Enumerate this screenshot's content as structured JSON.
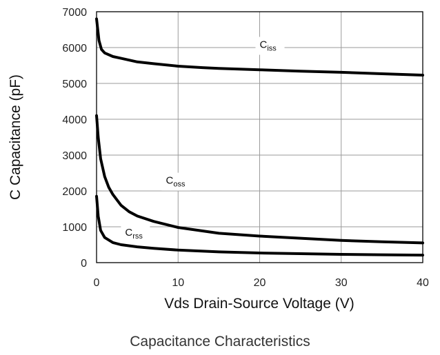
{
  "chart_data": {
    "type": "line",
    "title": "",
    "caption": "Capacitance Characteristics",
    "xlabel": "Vds Drain-Source Voltage (V)",
    "ylabel": "C Capacitance (pF)",
    "xlim": [
      0,
      40
    ],
    "ylim": [
      0,
      7000
    ],
    "xticks": [
      0,
      10,
      20,
      30,
      40
    ],
    "yticks": [
      0,
      1000,
      2000,
      3000,
      4000,
      5000,
      6000,
      7000
    ],
    "grid": true,
    "line_color": "#000000",
    "series": [
      {
        "label_main": "C",
        "label_sub": "iss",
        "label_at": [
          20,
          5990
        ],
        "x": [
          0,
          0.3,
          0.6,
          1,
          2,
          3,
          5,
          7,
          10,
          13,
          15,
          20,
          25,
          30,
          35,
          40
        ],
        "y": [
          6800,
          6200,
          5950,
          5850,
          5750,
          5700,
          5600,
          5550,
          5480,
          5440,
          5420,
          5380,
          5340,
          5310,
          5270,
          5230
        ]
      },
      {
        "label_main": "C",
        "label_sub": "oss",
        "label_at": [
          8.5,
          2200
        ],
        "x": [
          0,
          0.2,
          0.5,
          1,
          1.5,
          2,
          3,
          4,
          5,
          7,
          10,
          15,
          20,
          25,
          30,
          35,
          40
        ],
        "y": [
          4100,
          3500,
          2900,
          2400,
          2100,
          1900,
          1600,
          1420,
          1300,
          1150,
          980,
          820,
          740,
          680,
          620,
          580,
          550
        ]
      },
      {
        "label_main": "C",
        "label_sub": "rss",
        "label_at": [
          3.5,
          750
        ],
        "x": [
          0,
          0.2,
          0.5,
          1,
          2,
          3,
          5,
          7,
          10,
          15,
          20,
          25,
          30,
          35,
          40
        ],
        "y": [
          1850,
          1300,
          900,
          700,
          560,
          500,
          440,
          400,
          350,
          300,
          270,
          250,
          230,
          220,
          210
        ]
      }
    ]
  }
}
